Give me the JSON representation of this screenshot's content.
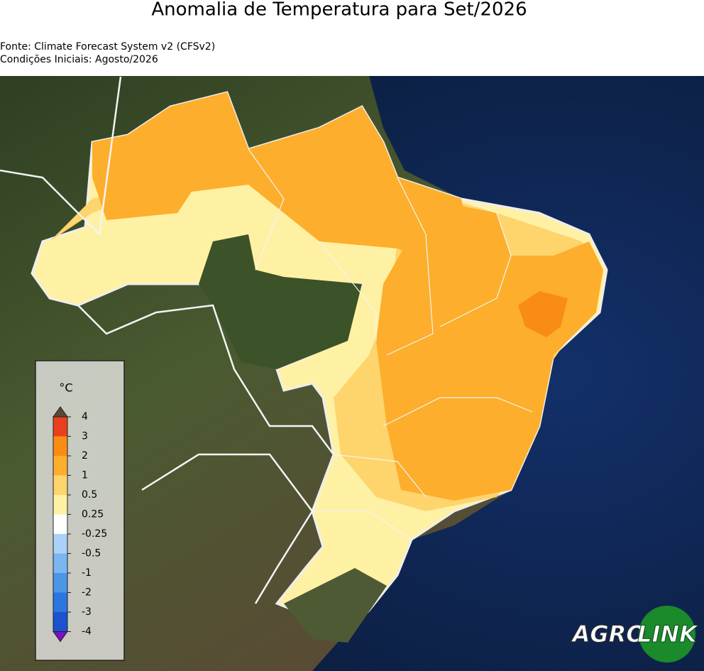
{
  "header": {
    "title": "Anomalia de Temperatura para Set/2026",
    "source": "Fonte: Climate Forecast System v2 (CFSv2)",
    "initial_conditions": "Condições Iniciais: Agosto/2026"
  },
  "colorbar": {
    "unit": "°C",
    "ticks": [
      4,
      3,
      2,
      1,
      0.5,
      0.25,
      -0.25,
      -0.5,
      -1,
      -2,
      -3,
      -4
    ],
    "colors": [
      "#e8401c",
      "#f98c14",
      "#fdae2c",
      "#fed46c",
      "#fff1a4",
      "#ffffff",
      "#aad2f8",
      "#7ab6f0",
      "#4c96e8",
      "#2c76e0",
      "#1c52d0"
    ],
    "over_color": "#5a4a3a",
    "under_color": "#7a10c0"
  },
  "logo": {
    "left": "AGRO",
    "right": "LINK"
  }
}
